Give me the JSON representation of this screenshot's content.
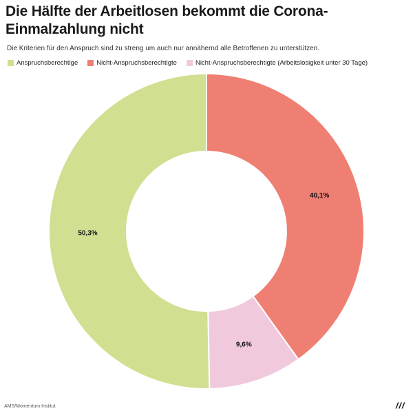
{
  "header": {
    "title": "Die Hälfte der Arbeitlosen bekommt die Corona-Einmalzahlung nicht",
    "subtitle": "Die Kriterien für den Anspruch sind zu streng um auch nur annähernd alle Betroffenen zu unterstützen."
  },
  "legend": {
    "items": [
      {
        "label": "Anspruchsberechtige",
        "color": "#d1df91"
      },
      {
        "label": "Nicht-Anspruchsberechtigte",
        "color": "#ef7f73"
      },
      {
        "label": "Nicht-Anspruchsberechtigte (Arbeitslosigkeit unter 30 Tage)",
        "color": "#f0c9dc"
      }
    ]
  },
  "chart_data": {
    "type": "pie",
    "variant": "donut",
    "legend_position": "top-left",
    "slices": [
      {
        "name": "Nicht-Anspruchsberechtigte",
        "value": 40.1,
        "label": "40,1%",
        "color": "#ef7f73"
      },
      {
        "name": "Nicht-Anspruchsberechtigte (Arbeitslosigkeit unter 30 Tage)",
        "value": 9.6,
        "label": "9,6%",
        "color": "#f0c9dc"
      },
      {
        "name": "Anspruchsberechtige",
        "value": 50.3,
        "label": "50,3%",
        "color": "#d1df91"
      }
    ]
  },
  "footer": {
    "source": "AMS/Momentum Institut",
    "logo_icon": "momentum-logo-icon"
  }
}
